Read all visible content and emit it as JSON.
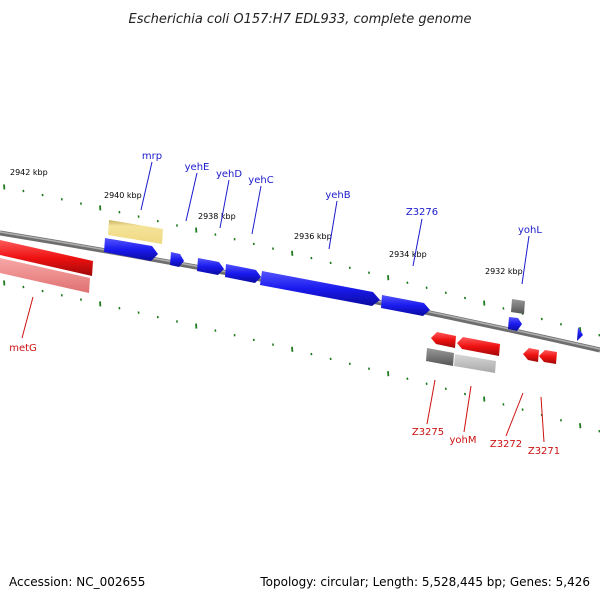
{
  "title": "Escherichia coli O157:H7 EDL933, complete genome",
  "accession": "Accession: NC_002655",
  "summary": "Topology: circular; Length: 5,528,445 bp; Genes: 5,426",
  "colors": {
    "forward": "#1a1aee",
    "reverse": "#ee1111",
    "backbone": "#888888",
    "tick": "#1e7a1e",
    "tag_yellow": "#f2e08a",
    "tag_pink": "#f08080",
    "tag_gray": "#7a7a7a"
  },
  "scale_labels": [
    "2942 kbp",
    "2940 kbp",
    "2938 kbp",
    "2936 kbp",
    "2934 kbp",
    "2932 kbp"
  ],
  "genes_top": [
    "mrp",
    "yehE",
    "yehD",
    "yehC",
    "yehB",
    "Z3276",
    "yohL"
  ],
  "genes_bottom": [
    "metG",
    "Z3275",
    "yohM",
    "Z3272",
    "Z3271"
  ]
}
